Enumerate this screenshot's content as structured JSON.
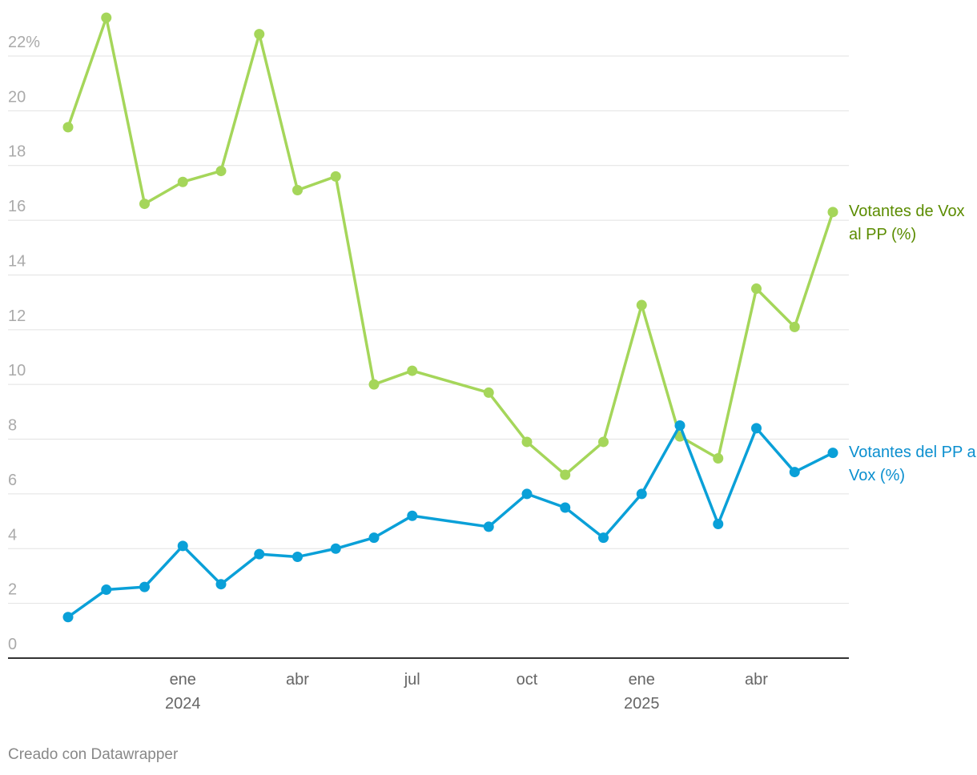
{
  "chart_data": {
    "type": "line",
    "x": [
      "2023-10",
      "2023-11",
      "2023-12",
      "2024-01",
      "2024-02",
      "2024-03",
      "2024-04",
      "2024-05",
      "2024-06",
      "2024-07",
      "2024-09",
      "2024-10",
      "2024-11",
      "2024-12",
      "2025-01",
      "2025-02",
      "2025-03",
      "2025-04",
      "2025-05",
      "2025-06"
    ],
    "series": [
      {
        "name": "Votantes de Vox al PP (%)",
        "color": "#a5d65a",
        "label_color": "#5b8c00",
        "values": [
          19.4,
          23.4,
          16.6,
          17.4,
          17.8,
          22.8,
          17.1,
          17.6,
          10.0,
          10.5,
          9.7,
          7.9,
          6.7,
          7.9,
          12.9,
          8.1,
          7.3,
          13.5,
          12.1,
          16.3
        ]
      },
      {
        "name": "Votantes del PP a Vox (%)",
        "color": "#0aa0d8",
        "label_color": "#0b8fcf",
        "values": [
          1.5,
          2.5,
          2.6,
          4.1,
          2.7,
          3.8,
          3.7,
          4.0,
          4.4,
          5.2,
          4.8,
          6.0,
          5.5,
          4.4,
          6.0,
          8.5,
          4.9,
          8.4,
          6.8,
          7.5
        ]
      }
    ],
    "xlim": [
      "2023-10",
      "2025-06"
    ],
    "xticks": [
      {
        "value": "2024-01",
        "label": "ene 2024"
      },
      {
        "value": "2024-04",
        "label": "abr"
      },
      {
        "value": "2024-07",
        "label": "jul"
      },
      {
        "value": "2024-10",
        "label": "oct"
      },
      {
        "value": "2025-01",
        "label": "ene 2025"
      },
      {
        "value": "2025-04",
        "label": "abr"
      }
    ],
    "ylim": [
      0,
      22
    ],
    "yticks": [
      0,
      2,
      4,
      6,
      8,
      10,
      12,
      14,
      16,
      18,
      20,
      {
        "value": 22,
        "label": "22%"
      }
    ],
    "grid": true,
    "source": "Creado con Datawrapper"
  }
}
